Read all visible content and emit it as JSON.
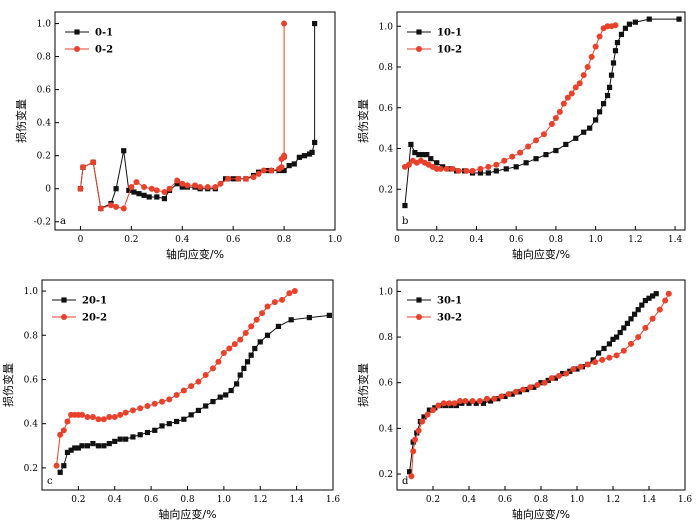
{
  "colors": {
    "series_a": "#111111",
    "series_b": "#e8412c",
    "axis": "#000000"
  },
  "chart_data": [
    {
      "type": "line",
      "panel_label": "a",
      "xlabel": "轴向应变/%",
      "ylabel": "损伤变量",
      "xlim": [
        -0.1,
        1.0
      ],
      "ylim": [
        -0.25,
        1.07
      ],
      "xticks": [
        0.0,
        0.2,
        0.4,
        0.6,
        0.8,
        1.0
      ],
      "xtick_labels": [
        "0",
        "0.2",
        "0.4",
        "0.6",
        "0.8",
        "1.0"
      ],
      "yticks": [
        -0.2,
        0.0,
        0.2,
        0.4,
        0.6,
        0.8,
        1.0
      ],
      "ytick_labels": [
        "-0.2",
        "0",
        "0.2",
        "0.4",
        "0.6",
        "0.8",
        "1.0"
      ],
      "legend_position": "top-left",
      "series": [
        {
          "name": "0-1",
          "marker": "square",
          "x": [
            0.0,
            0.01,
            0.05,
            0.08,
            0.12,
            0.14,
            0.17,
            0.19,
            0.21,
            0.23,
            0.25,
            0.27,
            0.3,
            0.33,
            0.35,
            0.38,
            0.4,
            0.42,
            0.45,
            0.47,
            0.5,
            0.53,
            0.57,
            0.6,
            0.62,
            0.65,
            0.68,
            0.7,
            0.73,
            0.75,
            0.78,
            0.8,
            0.82,
            0.84,
            0.86,
            0.88,
            0.9,
            0.91,
            0.92,
            0.92
          ],
          "y": [
            0.0,
            0.13,
            0.16,
            -0.12,
            -0.09,
            0.0,
            0.23,
            -0.01,
            -0.02,
            -0.03,
            -0.04,
            -0.05,
            -0.05,
            -0.06,
            -0.01,
            0.03,
            0.01,
            0.01,
            0.01,
            0.0,
            0.0,
            0.0,
            0.06,
            0.06,
            0.06,
            0.06,
            0.08,
            0.1,
            0.11,
            0.11,
            0.11,
            0.11,
            0.14,
            0.15,
            0.19,
            0.2,
            0.21,
            0.22,
            0.28,
            1.0
          ]
        },
        {
          "name": "0-2",
          "marker": "circle",
          "x": [
            0.0,
            0.01,
            0.05,
            0.08,
            0.12,
            0.14,
            0.17,
            0.2,
            0.22,
            0.25,
            0.28,
            0.3,
            0.33,
            0.35,
            0.38,
            0.4,
            0.42,
            0.45,
            0.47,
            0.5,
            0.53,
            0.55,
            0.58,
            0.62,
            0.65,
            0.68,
            0.7,
            0.72,
            0.75,
            0.78,
            0.79,
            0.79,
            0.8,
            0.8,
            0.8
          ],
          "y": [
            0.0,
            0.13,
            0.16,
            -0.12,
            -0.1,
            -0.11,
            -0.12,
            0.01,
            0.04,
            0.01,
            0.0,
            -0.01,
            -0.02,
            0.0,
            0.05,
            0.03,
            0.02,
            0.02,
            0.01,
            0.01,
            0.01,
            0.03,
            0.06,
            0.06,
            0.06,
            0.07,
            0.09,
            0.11,
            0.11,
            0.12,
            0.13,
            0.18,
            0.19,
            0.2,
            1.0
          ]
        }
      ]
    },
    {
      "type": "line",
      "panel_label": "b",
      "xlabel": "轴向应变/%",
      "ylabel": "损伤变量",
      "xlim": [
        0.0,
        1.45
      ],
      "ylim": [
        0.0,
        1.07
      ],
      "xticks": [
        0.0,
        0.2,
        0.4,
        0.6,
        0.8,
        1.0,
        1.2,
        1.4
      ],
      "xtick_labels": [
        "0",
        "0.2",
        "0.4",
        "0.6",
        "0.8",
        "1.0",
        "1.2",
        "1.4"
      ],
      "yticks": [
        0.2,
        0.4,
        0.6,
        0.8,
        1.0
      ],
      "ytick_labels": [
        "0.2",
        "0.4",
        "0.6",
        "0.8",
        "1.0"
      ],
      "legend_position": "top-left",
      "series": [
        {
          "name": "10-1",
          "marker": "square",
          "x": [
            0.04,
            0.07,
            0.09,
            0.11,
            0.13,
            0.15,
            0.17,
            0.2,
            0.23,
            0.27,
            0.3,
            0.34,
            0.38,
            0.42,
            0.46,
            0.5,
            0.55,
            0.6,
            0.65,
            0.7,
            0.75,
            0.8,
            0.85,
            0.9,
            0.94,
            0.97,
            1.0,
            1.02,
            1.04,
            1.06,
            1.07,
            1.08,
            1.09,
            1.1,
            1.11,
            1.13,
            1.15,
            1.17,
            1.2,
            1.27,
            1.42
          ],
          "y": [
            0.12,
            0.42,
            0.38,
            0.37,
            0.37,
            0.37,
            0.35,
            0.33,
            0.31,
            0.3,
            0.29,
            0.29,
            0.28,
            0.28,
            0.28,
            0.29,
            0.3,
            0.31,
            0.33,
            0.35,
            0.37,
            0.39,
            0.42,
            0.45,
            0.48,
            0.5,
            0.54,
            0.58,
            0.62,
            0.66,
            0.7,
            0.76,
            0.82,
            0.88,
            0.92,
            0.96,
            0.99,
            1.01,
            1.02,
            1.035,
            1.035
          ]
        },
        {
          "name": "10-2",
          "marker": "circle",
          "x": [
            0.04,
            0.06,
            0.08,
            0.1,
            0.12,
            0.14,
            0.16,
            0.18,
            0.2,
            0.22,
            0.25,
            0.28,
            0.31,
            0.35,
            0.38,
            0.42,
            0.46,
            0.5,
            0.54,
            0.58,
            0.62,
            0.66,
            0.7,
            0.74,
            0.78,
            0.8,
            0.82,
            0.84,
            0.86,
            0.88,
            0.9,
            0.92,
            0.94,
            0.96,
            0.98,
            1.0,
            1.02,
            1.04,
            1.06,
            1.08,
            1.1
          ],
          "y": [
            0.31,
            0.32,
            0.34,
            0.33,
            0.34,
            0.33,
            0.32,
            0.31,
            0.3,
            0.3,
            0.3,
            0.3,
            0.29,
            0.29,
            0.29,
            0.3,
            0.31,
            0.32,
            0.34,
            0.36,
            0.38,
            0.41,
            0.44,
            0.47,
            0.52,
            0.55,
            0.58,
            0.62,
            0.65,
            0.67,
            0.7,
            0.72,
            0.76,
            0.8,
            0.85,
            0.9,
            0.95,
            0.99,
            1.0,
            1.0,
            1.005
          ]
        }
      ]
    },
    {
      "type": "line",
      "panel_label": "c",
      "xlabel": "轴向应变/%",
      "ylabel": "损伤变量",
      "xlim": [
        0.0,
        1.6
      ],
      "ylim": [
        0.1,
        1.05
      ],
      "xticks": [
        0.2,
        0.4,
        0.6,
        0.8,
        1.0,
        1.2,
        1.4,
        1.6
      ],
      "xtick_labels": [
        "0.2",
        "0.4",
        "0.6",
        "0.8",
        "1.0",
        "1.2",
        "1.4",
        "1.6"
      ],
      "yticks": [
        0.2,
        0.4,
        0.6,
        0.8,
        1.0
      ],
      "ytick_labels": [
        "0.2",
        "0.4",
        "0.6",
        "0.8",
        "1.0"
      ],
      "legend_position": "top-left",
      "series": [
        {
          "name": "20-1",
          "marker": "square",
          "x": [
            0.1,
            0.12,
            0.14,
            0.16,
            0.18,
            0.2,
            0.22,
            0.25,
            0.28,
            0.31,
            0.34,
            0.37,
            0.4,
            0.43,
            0.46,
            0.5,
            0.54,
            0.58,
            0.62,
            0.66,
            0.7,
            0.74,
            0.78,
            0.82,
            0.86,
            0.9,
            0.94,
            0.98,
            1.01,
            1.04,
            1.07,
            1.09,
            1.11,
            1.13,
            1.15,
            1.17,
            1.2,
            1.24,
            1.3,
            1.37,
            1.47,
            1.58
          ],
          "y": [
            0.18,
            0.21,
            0.27,
            0.28,
            0.29,
            0.29,
            0.3,
            0.3,
            0.31,
            0.3,
            0.3,
            0.31,
            0.32,
            0.33,
            0.33,
            0.34,
            0.35,
            0.36,
            0.37,
            0.39,
            0.4,
            0.41,
            0.42,
            0.44,
            0.46,
            0.48,
            0.5,
            0.52,
            0.53,
            0.55,
            0.58,
            0.62,
            0.65,
            0.68,
            0.71,
            0.74,
            0.77,
            0.8,
            0.84,
            0.87,
            0.88,
            0.89
          ]
        },
        {
          "name": "20-2",
          "marker": "circle",
          "x": [
            0.08,
            0.1,
            0.12,
            0.14,
            0.16,
            0.18,
            0.2,
            0.22,
            0.25,
            0.28,
            0.31,
            0.34,
            0.37,
            0.4,
            0.43,
            0.46,
            0.5,
            0.54,
            0.58,
            0.62,
            0.66,
            0.7,
            0.74,
            0.78,
            0.82,
            0.86,
            0.9,
            0.94,
            0.97,
            1.0,
            1.03,
            1.06,
            1.09,
            1.12,
            1.15,
            1.18,
            1.21,
            1.24,
            1.28,
            1.32,
            1.36,
            1.39
          ],
          "y": [
            0.21,
            0.35,
            0.37,
            0.41,
            0.44,
            0.44,
            0.44,
            0.44,
            0.43,
            0.43,
            0.42,
            0.42,
            0.43,
            0.43,
            0.44,
            0.45,
            0.46,
            0.47,
            0.48,
            0.49,
            0.5,
            0.51,
            0.53,
            0.55,
            0.57,
            0.59,
            0.62,
            0.65,
            0.68,
            0.72,
            0.74,
            0.76,
            0.78,
            0.81,
            0.84,
            0.87,
            0.9,
            0.93,
            0.95,
            0.96,
            0.99,
            1.0
          ]
        }
      ]
    },
    {
      "type": "line",
      "panel_label": "d",
      "xlabel": "轴向应变/%",
      "ylabel": "损伤变量",
      "xlim": [
        0.0,
        1.6
      ],
      "ylim": [
        0.13,
        1.05
      ],
      "xticks": [
        0.2,
        0.4,
        0.6,
        0.8,
        1.0,
        1.2,
        1.4,
        1.6
      ],
      "xtick_labels": [
        "0.2",
        "0.4",
        "0.6",
        "0.8",
        "1.0",
        "1.2",
        "1.4",
        "1.6"
      ],
      "yticks": [
        0.2,
        0.4,
        0.6,
        0.8,
        1.0
      ],
      "ytick_labels": [
        "0.2",
        "0.4",
        "0.6",
        "0.8",
        "1.0"
      ],
      "legend_position": "top-left",
      "series": [
        {
          "name": "30-1",
          "marker": "square",
          "x": [
            0.07,
            0.09,
            0.11,
            0.13,
            0.15,
            0.18,
            0.21,
            0.24,
            0.27,
            0.3,
            0.33,
            0.36,
            0.4,
            0.44,
            0.48,
            0.52,
            0.56,
            0.6,
            0.64,
            0.68,
            0.72,
            0.76,
            0.8,
            0.84,
            0.88,
            0.92,
            0.96,
            1.0,
            1.03,
            1.06,
            1.09,
            1.12,
            1.15,
            1.18,
            1.2,
            1.22,
            1.24,
            1.26,
            1.28,
            1.3,
            1.32,
            1.34,
            1.36,
            1.38,
            1.4,
            1.42,
            1.44
          ],
          "y": [
            0.21,
            0.34,
            0.38,
            0.43,
            0.45,
            0.48,
            0.49,
            0.5,
            0.5,
            0.5,
            0.5,
            0.51,
            0.51,
            0.51,
            0.51,
            0.52,
            0.53,
            0.54,
            0.55,
            0.56,
            0.57,
            0.58,
            0.6,
            0.61,
            0.62,
            0.64,
            0.65,
            0.66,
            0.67,
            0.68,
            0.7,
            0.73,
            0.75,
            0.77,
            0.79,
            0.8,
            0.82,
            0.84,
            0.86,
            0.88,
            0.9,
            0.92,
            0.94,
            0.96,
            0.97,
            0.98,
            0.99
          ]
        },
        {
          "name": "30-2",
          "marker": "circle",
          "x": [
            0.08,
            0.09,
            0.1,
            0.12,
            0.14,
            0.17,
            0.2,
            0.23,
            0.26,
            0.29,
            0.32,
            0.35,
            0.38,
            0.42,
            0.46,
            0.5,
            0.54,
            0.58,
            0.62,
            0.66,
            0.7,
            0.74,
            0.78,
            0.82,
            0.86,
            0.9,
            0.94,
            0.98,
            1.02,
            1.06,
            1.1,
            1.14,
            1.18,
            1.22,
            1.26,
            1.3,
            1.34,
            1.38,
            1.42,
            1.46,
            1.49,
            1.51
          ],
          "y": [
            0.19,
            0.3,
            0.35,
            0.39,
            0.43,
            0.46,
            0.48,
            0.5,
            0.51,
            0.51,
            0.51,
            0.52,
            0.52,
            0.52,
            0.52,
            0.53,
            0.53,
            0.54,
            0.55,
            0.56,
            0.57,
            0.58,
            0.59,
            0.6,
            0.62,
            0.63,
            0.64,
            0.66,
            0.67,
            0.68,
            0.69,
            0.7,
            0.71,
            0.72,
            0.74,
            0.77,
            0.8,
            0.84,
            0.88,
            0.92,
            0.96,
            0.99
          ]
        }
      ]
    }
  ]
}
